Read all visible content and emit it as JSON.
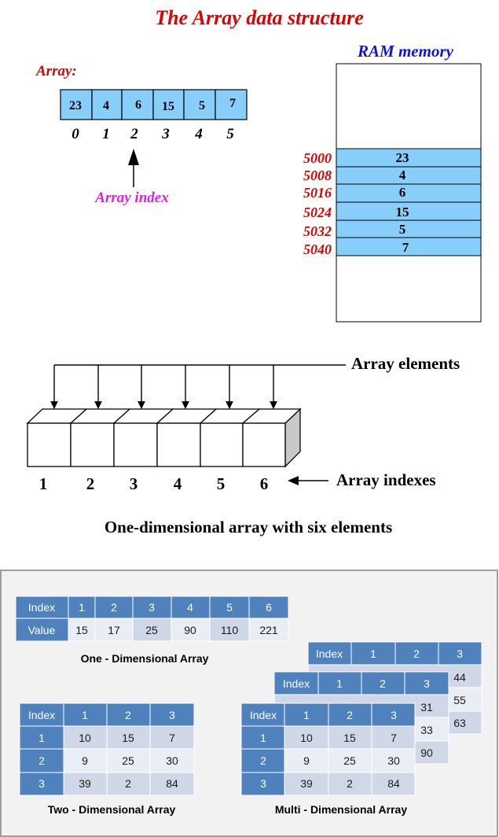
{
  "title": "The Array data structure",
  "ram_label": "RAM memory",
  "array_label": "Array:",
  "array_values": [
    "23",
    "4",
    "6",
    "15",
    "5",
    "7"
  ],
  "array_indices": [
    "0",
    "1",
    "2",
    "3",
    "4",
    "5"
  ],
  "array_index_label": "Array index",
  "ram_addresses": [
    "5000",
    "5008",
    "5016",
    "5024",
    "5032",
    "5040"
  ],
  "ram_values": [
    "23",
    "4",
    "6",
    "15",
    "5",
    "7"
  ],
  "one_d": {
    "elements_label": "Array elements",
    "indexes_label": "Array indexes",
    "indexes": [
      "1",
      "2",
      "3",
      "4",
      "5",
      "6"
    ],
    "caption": "One-dimensional array with six elements"
  },
  "tables": {
    "one_dim": {
      "header_label": "Index",
      "value_label": "Value",
      "indexes": [
        "1",
        "2",
        "3",
        "4",
        "5",
        "6"
      ],
      "values": [
        "15",
        "17",
        "25",
        "90",
        "110",
        "221"
      ],
      "caption": "One - Dimensional Array"
    },
    "two_dim": {
      "corner": "Index",
      "cols": [
        "1",
        "2",
        "3"
      ],
      "rows": [
        {
          "label": "1",
          "cells": [
            "10",
            "15",
            "7"
          ]
        },
        {
          "label": "2",
          "cells": [
            "9",
            "25",
            "30"
          ]
        },
        {
          "label": "3",
          "cells": [
            "39",
            "2",
            "84"
          ]
        }
      ],
      "caption": "Two - Dimensional Array"
    },
    "multi_dim": {
      "back_layer": {
        "corner": "Index",
        "cols": [
          "1",
          "2",
          "3"
        ],
        "visible_cells": [
          "44",
          "55",
          "63"
        ]
      },
      "middle_layer": {
        "corner": "Index",
        "cols": [
          "1",
          "2",
          "3"
        ],
        "visible_cells": [
          "31",
          "33",
          "90"
        ]
      },
      "front_layer": {
        "corner": "Index",
        "cols": [
          "1",
          "2",
          "3"
        ],
        "rows": [
          {
            "label": "1",
            "cells": [
              "10",
              "15",
              "7"
            ]
          },
          {
            "label": "2",
            "cells": [
              "9",
              "25",
              "30"
            ]
          },
          {
            "label": "3",
            "cells": [
              "39",
              "2",
              "84"
            ]
          }
        ]
      },
      "caption": "Multi - Dimensional Array"
    }
  },
  "colors": {
    "title_red": "#e00000",
    "ram_blue": "#1010e0",
    "index_magenta": "#e020e0",
    "cell_blue": "#87cefa",
    "table_header": "#4f81bd",
    "table_row_light": "#e9edf4",
    "table_row_mid": "#d0d8e8",
    "panel_bg": "#f2f2f2",
    "panel_border": "#9e9e9e"
  }
}
